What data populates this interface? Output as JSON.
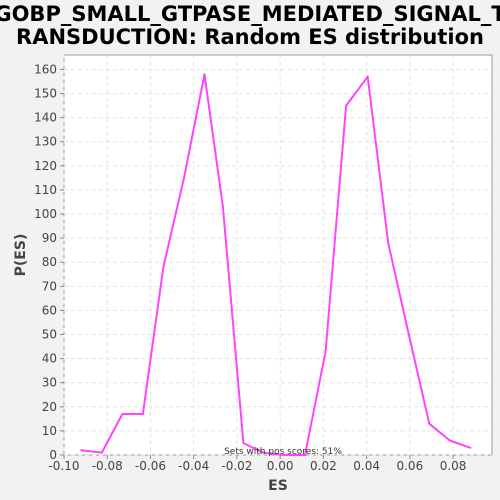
{
  "chart_data": {
    "type": "line",
    "title_line1": "GOBP_SMALL_GTPASE_MEDIATED_SIGNAL_T",
    "title_line2": "RANSDUCTION: Random ES distribution",
    "xlabel": "ES",
    "ylabel": "P(ES)",
    "xlim": [
      -0.1,
      0.098
    ],
    "ylim": [
      0,
      166
    ],
    "x_ticks": [
      -0.1,
      -0.08,
      -0.06,
      -0.04,
      -0.02,
      0.0,
      0.02,
      0.04,
      0.06,
      0.08
    ],
    "x_tick_labels": [
      "-0.10",
      "-0.08",
      "-0.06",
      "-0.04",
      "-0.02",
      "0.00",
      "0.02",
      "0.04",
      "0.06",
      "0.08"
    ],
    "y_ticks": [
      0,
      10,
      20,
      30,
      40,
      50,
      60,
      70,
      80,
      90,
      100,
      110,
      120,
      130,
      140,
      150,
      160
    ],
    "y_tick_labels": [
      "0",
      "10",
      "20",
      "30",
      "40",
      "50",
      "60",
      "70",
      "80",
      "90",
      "100",
      "110",
      "120",
      "130",
      "140",
      "150",
      "160"
    ],
    "grid": true,
    "annotation": "Sets with pos scores: 51%",
    "series": [
      {
        "color": "#ff44ff",
        "x": [
          -0.092,
          -0.0825,
          -0.073,
          -0.0635,
          -0.054,
          -0.0445,
          -0.035,
          -0.0265,
          -0.017,
          -0.008,
          0.0015,
          0.0115,
          0.021,
          0.0305,
          0.0405,
          0.05,
          0.0595,
          0.069,
          0.0785,
          0.088
        ],
        "y": [
          2,
          1,
          17,
          17,
          78,
          115,
          158,
          103,
          5,
          1,
          0,
          0,
          43,
          145,
          157,
          88,
          50,
          13,
          6,
          3
        ]
      }
    ]
  }
}
